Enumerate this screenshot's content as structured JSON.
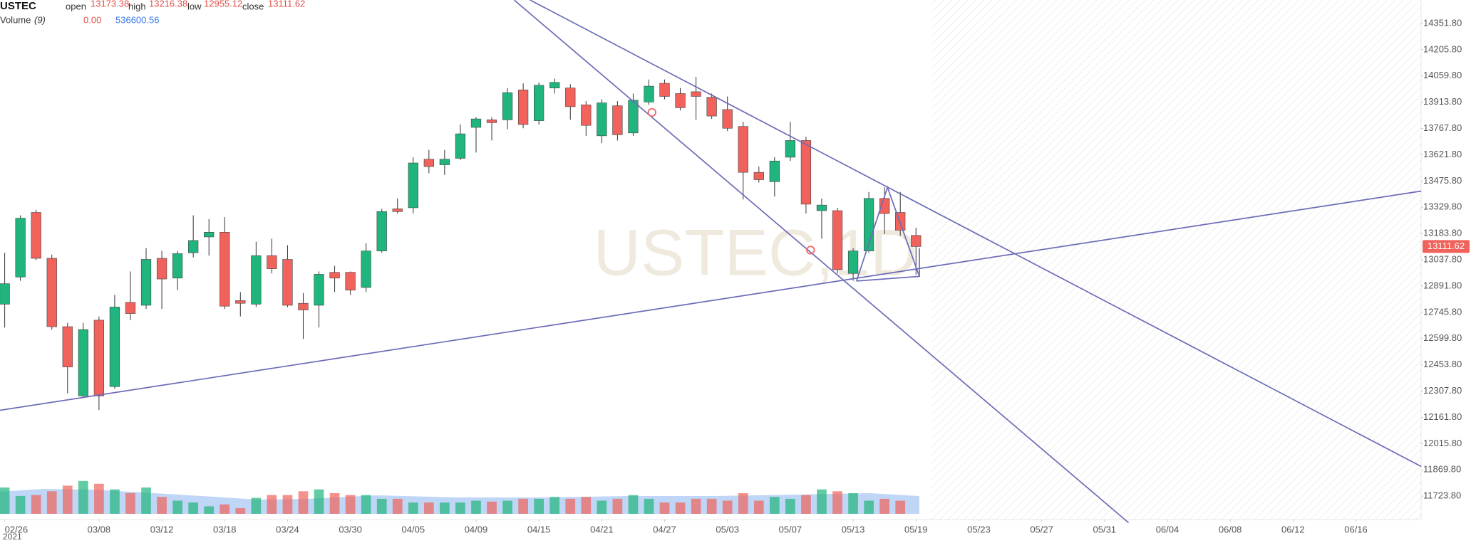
{
  "chart_data": {
    "type": "candlestick",
    "title": "USTEC",
    "watermark": "USTEC,1D",
    "legend_labels": {
      "open": "open",
      "high": "high",
      "low": "low",
      "close": "close"
    },
    "volume_title": "Volume",
    "volume_ma_period": "(9)",
    "volume_current": {
      "value": 0,
      "label": "0.00"
    },
    "volume_ma_value": 536600.56,
    "x_year": "2021",
    "up_color": "#1fb57c",
    "down_color": "#f0625b",
    "open": [
      12791,
      12942,
      13301,
      13046,
      12666,
      12281,
      12702,
      12333,
      12801,
      12785,
      13046,
      12936,
      13077,
      13165,
      13191,
      12811,
      12791,
      13061,
      13040,
      12796,
      12785,
      12968,
      12968,
      12884,
      13087,
      13321,
      13327,
      13597,
      13566,
      13602,
      13774,
      13816,
      13816,
      13982,
      13811,
      13993,
      13993,
      13899,
      13727,
      13894,
      13743,
      13915,
      14019,
      13962,
      13972,
      13941,
      13873,
      13779,
      13524,
      13472,
      13608,
      13701,
      13311,
      13311,
      12962,
      13087,
      13379,
      13301,
      13173.38
    ],
    "high": [
      13077,
      13285,
      13316,
      13067,
      12687,
      12687,
      12723,
      12843,
      12973,
      13103,
      13087,
      13087,
      13285,
      13264,
      13275,
      12858,
      13139,
      13155,
      13119,
      12853,
      12973,
      13004,
      12973,
      13129,
      13321,
      13379,
      13608,
      13649,
      13649,
      13790,
      13831,
      13831,
      13993,
      14019,
      14024,
      14045,
      14014,
      13920,
      13930,
      13920,
      13962,
      14040,
      14040,
      13993,
      14055,
      13962,
      13946,
      13805,
      13556,
      13608,
      13805,
      13722,
      13379,
      13327,
      13103,
      13415,
      13441,
      13415,
      13216.38
    ],
    "low": [
      12661,
      12921,
      13035,
      12650,
      12296,
      12270,
      12203,
      12322,
      12702,
      12765,
      12765,
      12869,
      13051,
      13061,
      12765,
      12723,
      12775,
      12962,
      12775,
      12598,
      12661,
      12858,
      12843,
      12858,
      13077,
      13295,
      13295,
      13519,
      13509,
      13592,
      13634,
      13701,
      13764,
      13769,
      13790,
      13962,
      13816,
      13727,
      13686,
      13701,
      13727,
      13899,
      13930,
      13868,
      13816,
      13821,
      13753,
      13373,
      13467,
      13389,
      13587,
      13295,
      13155,
      12962,
      12921,
      13077,
      13181,
      13171,
      12955.12
    ],
    "close": [
      12905,
      13269,
      13046,
      12666,
      12442,
      12650,
      12281,
      12775,
      12739,
      13040,
      12931,
      13072,
      13145,
      13191,
      12780,
      12796,
      13061,
      12988,
      12785,
      12759,
      12957,
      12936,
      12869,
      13087,
      13306,
      13306,
      13576,
      13556,
      13597,
      13738,
      13821,
      13800,
      13967,
      13790,
      14008,
      14024,
      13889,
      13785,
      13910,
      13733,
      13925,
      14003,
      13946,
      13883,
      13946,
      13837,
      13769,
      13524,
      13483,
      13587,
      13701,
      13347,
      13342,
      12983,
      13087,
      13379,
      13295,
      13202,
      13111.62
    ],
    "volume": [
      560000,
      380000,
      400000,
      480000,
      600000,
      700000,
      640000,
      520000,
      440000,
      560000,
      360000,
      280000,
      240000,
      160000,
      200000,
      120000,
      340000,
      400000,
      400000,
      480000,
      520000,
      440000,
      400000,
      400000,
      320000,
      320000,
      240000,
      240000,
      240000,
      240000,
      280000,
      260000,
      280000,
      320000,
      320000,
      360000,
      320000,
      360000,
      280000,
      320000,
      400000,
      320000,
      240000,
      240000,
      320000,
      320000,
      280000,
      440000,
      280000,
      360000,
      320000,
      400000,
      520000,
      480000,
      440000,
      280000,
      320000,
      280000,
      0
    ],
    "volume_ylim": [
      0,
      1000000
    ],
    "xlim": [
      -0.3,
      90.15
    ],
    "xticks": [
      {
        "value": 0,
        "label": "02/26"
      },
      {
        "value": 6,
        "label": "03/08"
      },
      {
        "value": 10,
        "label": "03/12"
      },
      {
        "value": 14,
        "label": "03/18"
      },
      {
        "value": 18,
        "label": "03/24"
      },
      {
        "value": 22,
        "label": "03/30"
      },
      {
        "value": 26,
        "label": "04/05"
      },
      {
        "value": 30,
        "label": "04/09"
      },
      {
        "value": 34,
        "label": "04/15"
      },
      {
        "value": 38,
        "label": "04/21"
      },
      {
        "value": 42,
        "label": "04/27"
      },
      {
        "value": 46,
        "label": "05/03"
      },
      {
        "value": 50,
        "label": "05/07"
      },
      {
        "value": 54,
        "label": "05/13"
      },
      {
        "value": 58,
        "label": "05/19"
      },
      {
        "value": 62,
        "label": "05/23"
      },
      {
        "value": 66,
        "label": "05/27"
      },
      {
        "value": 70,
        "label": "05/31"
      },
      {
        "value": 74,
        "label": "06/04"
      },
      {
        "value": 78,
        "label": "06/08"
      },
      {
        "value": 82,
        "label": "06/12"
      },
      {
        "value": 86,
        "label": "06/16"
      }
    ],
    "ylim": [
      11594,
      14482
    ],
    "yticks": [
      {
        "value": 14351.8,
        "label": "14351.80"
      },
      {
        "value": 14205.8,
        "label": "14205.80"
      },
      {
        "value": 14059.8,
        "label": "14059.80"
      },
      {
        "value": 13913.8,
        "label": "13913.80"
      },
      {
        "value": 13767.8,
        "label": "13767.80"
      },
      {
        "value": 13621.8,
        "label": "13621.80"
      },
      {
        "value": 13475.8,
        "label": "13475.80"
      },
      {
        "value": 13329.8,
        "label": "13329.80"
      },
      {
        "value": 13183.8,
        "label": "13183.80"
      },
      {
        "value": 13037.8,
        "label": "13037.80"
      },
      {
        "value": 12891.8,
        "label": "12891.80"
      },
      {
        "value": 12745.8,
        "label": "12745.80"
      },
      {
        "value": 12599.8,
        "label": "12599.80"
      },
      {
        "value": 12453.8,
        "label": "12453.80"
      },
      {
        "value": 12307.8,
        "label": "12307.80"
      },
      {
        "value": 12161.8,
        "label": "12161.80"
      },
      {
        "value": 12015.8,
        "label": "12015.80"
      },
      {
        "value": 11869.8,
        "label": "11869.80"
      },
      {
        "value": 11723.8,
        "label": "11723.80"
      }
    ]
  }
}
